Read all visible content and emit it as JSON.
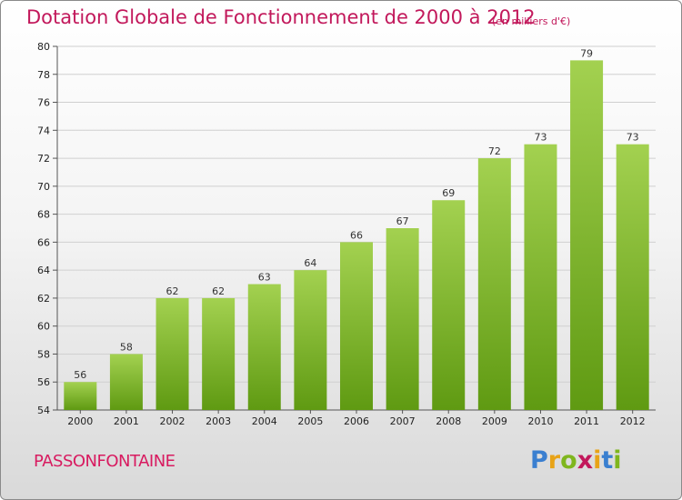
{
  "header": {
    "title": "Dotation Globale de Fonctionnement de 2000 à 2012",
    "subtitle": "(en milliers d'€)"
  },
  "footer": {
    "commune": "PASSONFONTAINE",
    "logo_text": "Proxiti"
  },
  "colors": {
    "bar_light": "#a3d150",
    "bar_dark": "#5f9a12",
    "title": "#c2185b",
    "grid": "#d0d0d0"
  },
  "chart_data": {
    "type": "bar",
    "title": "Dotation Globale de Fonctionnement de 2000 à 2012",
    "subtitle": "(en milliers d'€)",
    "categories": [
      "2000",
      "2001",
      "2002",
      "2003",
      "2004",
      "2005",
      "2006",
      "2007",
      "2008",
      "2009",
      "2010",
      "2011",
      "2012"
    ],
    "values": [
      56,
      58,
      62,
      62,
      63,
      64,
      66,
      67,
      69,
      72,
      73,
      79,
      73
    ],
    "ylim": [
      54,
      80
    ],
    "yticks": [
      54,
      56,
      58,
      60,
      62,
      64,
      66,
      68,
      70,
      72,
      74,
      76,
      78,
      80
    ],
    "grid": true,
    "data_labels": true
  }
}
